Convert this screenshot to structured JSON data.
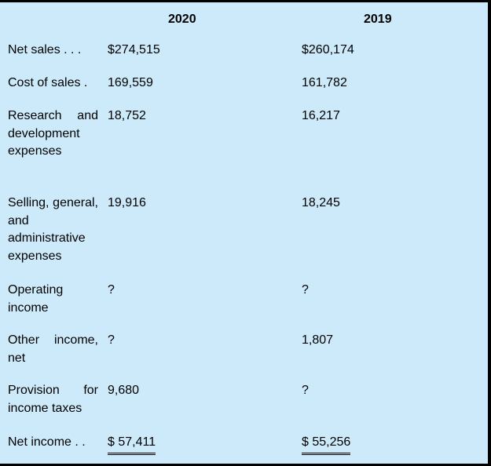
{
  "headers": {
    "y2020": "2020",
    "y2019": "2019"
  },
  "rows": [
    {
      "label": "Net sales . . .",
      "v2020": "$274,515",
      "v2019": "$260,174"
    },
    {
      "label": "Cost of sales .",
      "v2020": "169,559",
      "v2019": "161,782"
    },
    {
      "label": "Research and development expenses",
      "v2020": "18,752",
      "v2019": "16,217"
    },
    {
      "label": "Selling, general, and administrative expenses",
      "v2020": "19,916",
      "v2019": "18,245"
    },
    {
      "label": "Operating income",
      "v2020": "?",
      "v2019": "?"
    },
    {
      "label": "Other income, net",
      "v2020": "?",
      "v2019": "1,807"
    },
    {
      "label": "Provision for income taxes",
      "v2020": "9,680",
      "v2019": "?"
    },
    {
      "label": "Net income . .",
      "v2020": "$ 57,411",
      "v2019": "$ 55,256"
    }
  ]
}
